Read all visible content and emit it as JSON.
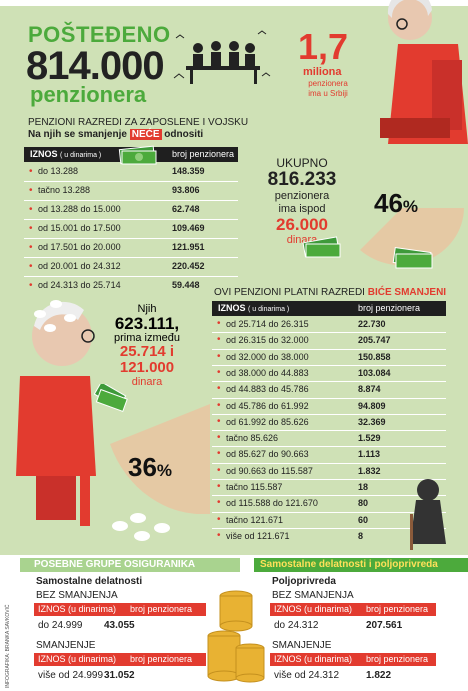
{
  "header": {
    "spared_label": "POŠTEĐENO",
    "spared_number": "814.000",
    "pensioners_label": "penzionera"
  },
  "serbia": {
    "number": "1,7",
    "unit": "miliona",
    "line1": "penzionera",
    "line2": "ima u Srbiji"
  },
  "section1": {
    "title": "PENZIONI RAZREDI ZA ZAPOSLENE I VOJSKU",
    "subtitle_before": "Na njih se smanjenje",
    "subtitle_highlight": "NEĆE",
    "subtitle_after": "odnositi",
    "col_amount": "IZNOS",
    "col_amount_sub": "( u dinarima )",
    "col_count": "broj penzionera",
    "rows": [
      {
        "label": "do 13.288",
        "value": "148.359"
      },
      {
        "label": "tačno 13.288",
        "value": "93.806"
      },
      {
        "label": "od 13.288 do 15.000",
        "value": "62.748"
      },
      {
        "label": "od 15.001 do 17.500",
        "value": "109.469"
      },
      {
        "label": "od 17.501 do 20.000",
        "value": "121.951"
      },
      {
        "label": "od 20.001 do 24.312",
        "value": "220.452"
      },
      {
        "label": "od 24.313 do 25.714",
        "value": "59.448"
      }
    ]
  },
  "total": {
    "label": "UKUPNO",
    "number": "816.233",
    "line1": "penzionera",
    "line2": "ima ispod",
    "amount": "26.000",
    "currency": "dinara",
    "percent": "46",
    "percent_sign": "%"
  },
  "middle": {
    "line1": "Njih",
    "number": "623.111,",
    "line2": "prima između",
    "amount1": "25.714 i",
    "amount2": "121.000",
    "currency": "dinara",
    "percent": "36",
    "percent_sign": "%"
  },
  "section2": {
    "title_before": "OVI PENZIONI PLATNI RAZREDI",
    "title_highlight": "BIĆE SMANJENI",
    "col_amount": "IZNOS",
    "col_amount_sub": "( u dinarima )",
    "col_count": "broj penzionera",
    "rows": [
      {
        "label": "od 25.714 do 26.315",
        "value": "22.730"
      },
      {
        "label": "od 26.315 do 32.000",
        "value": "205.747"
      },
      {
        "label": "od 32.000 do 38.000",
        "value": "150.858"
      },
      {
        "label": "od 38.000 do 44.883",
        "value": "103.084"
      },
      {
        "label": "od 44.883 do 45.786",
        "value": "8.874"
      },
      {
        "label": "od 45.786 do 61.992",
        "value": "94.809"
      },
      {
        "label": "od 61.992 do 85.626",
        "value": "32.369"
      },
      {
        "label": "tačno 85.626",
        "value": "1.529"
      },
      {
        "label": "od 85.627 do 90.663",
        "value": "1.113"
      },
      {
        "label": "od 90.663 do 115.587",
        "value": "1.832"
      },
      {
        "label": "tačno 115.587",
        "value": "18"
      },
      {
        "label": "od 115.588 do 121.670",
        "value": "80"
      },
      {
        "label": "tačno 121.671",
        "value": "60"
      },
      {
        "label": "više od 121.671",
        "value": "8"
      }
    ]
  },
  "bottom": {
    "left_header": "POSEBNE GRUPE OSIGURANIKA",
    "right_header": "Samostalne delatnosti i poljoprivreda",
    "left": {
      "title": "Samostalne delatnosti",
      "no_cut_label": "BEZ SMANJENJA",
      "col_amount": "IZNOS (u dinarima)",
      "col_count": "broj penzionera",
      "no_cut_amount": "do 24.999",
      "no_cut_value": "43.055",
      "cut_label": "SMANJENJE",
      "cut_amount": "više od 24.999",
      "cut_value": "31.052"
    },
    "right": {
      "title": "Poljoprivreda",
      "no_cut_label": "BEZ SMANJENJA",
      "col_amount": "IZNOS (u dinarima)",
      "col_count": "broj penzionera",
      "no_cut_amount": "do 24.312",
      "no_cut_value": "207.561",
      "cut_label": "SMANJENJE",
      "cut_amount": "više od 24.312",
      "cut_value": "1.822"
    }
  },
  "credit": "INFOGRAFIKA: BRANKA SAVKOVIĆ",
  "colors": {
    "green": "#4caa3c",
    "red": "#e23b2f",
    "dark": "#1f1f1f",
    "background": "#cfe1b6"
  }
}
